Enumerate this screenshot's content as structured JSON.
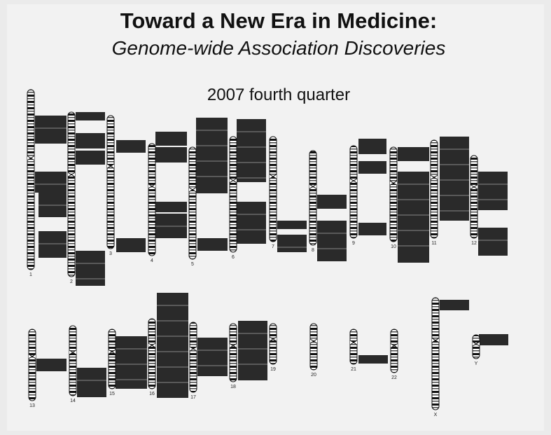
{
  "title": "Toward a New Era in Medicine:",
  "subtitle": "Genome-wide Association Discoveries",
  "period": "2007 fourth quarter",
  "chromosomes": [
    "1",
    "2",
    "3",
    "4",
    "5",
    "6",
    "7",
    "8",
    "9",
    "10",
    "11",
    "12",
    "13",
    "14",
    "15",
    "16",
    "17",
    "18",
    "19",
    "20",
    "21",
    "22",
    "X",
    "Y"
  ]
}
